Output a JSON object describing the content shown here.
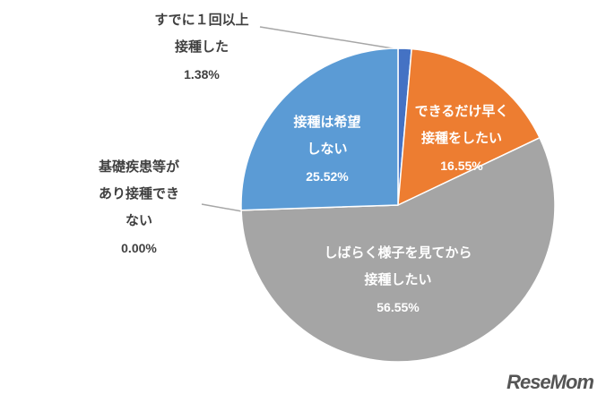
{
  "chart_data": {
    "type": "pie",
    "categories": [
      "すでに１回以上\n接種した",
      "できるだけ早く\n接種をしたい",
      "しばらく様子を見てから\n接種したい",
      "基礎疾患等が\nあり接種でき\nない",
      "接種は希望\nしない"
    ],
    "values": [
      1.38,
      16.55,
      56.55,
      0.0,
      25.52
    ],
    "value_labels": [
      "1.38%",
      "16.55%",
      "56.55%",
      "0.00%",
      "25.52%"
    ],
    "colors": [
      "#4472c4",
      "#ed7d31",
      "#a5a5a5",
      "#ffc000",
      "#5b9bd5"
    ]
  },
  "watermark": "ReseMom"
}
